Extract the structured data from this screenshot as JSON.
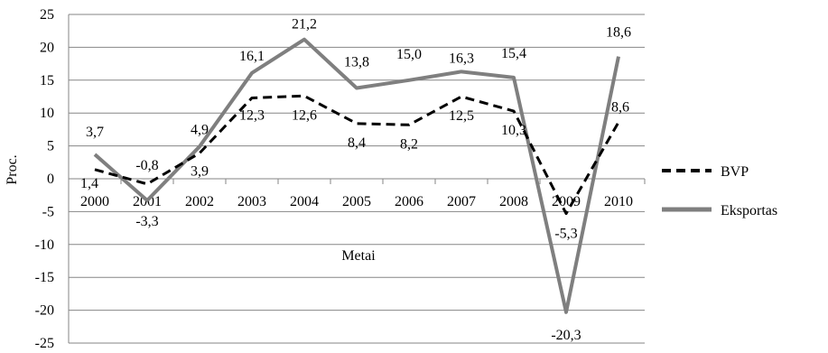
{
  "chart_data": {
    "type": "line",
    "title": "",
    "xlabel": "Metai",
    "ylabel": "Proc.",
    "ylim": [
      -25,
      25
    ],
    "yticks": [
      25,
      20,
      15,
      10,
      5,
      0,
      -5,
      -10,
      -15,
      -20,
      -25
    ],
    "grid": true,
    "legend_position": "right",
    "categories": [
      "2000",
      "2001",
      "2002",
      "2003",
      "2004",
      "2005",
      "2006",
      "2007",
      "2008",
      "2009",
      "2010"
    ],
    "series": [
      {
        "name": "BVP",
        "style": "dashed",
        "color": "#000000",
        "values": [
          1.4,
          -0.8,
          3.9,
          12.3,
          12.6,
          8.4,
          8.2,
          12.5,
          10.3,
          -5.3,
          8.6
        ],
        "labels": [
          "1,4",
          "-0,8",
          "3,9",
          "12,3",
          "12,6",
          "8,4",
          "8,2",
          "12,5",
          "10,3",
          "-5,3",
          "8,6"
        ]
      },
      {
        "name": "Eksportas",
        "style": "solid",
        "color": "#7f7f7f",
        "values": [
          3.7,
          -3.3,
          4.9,
          16.1,
          21.2,
          13.8,
          15.0,
          16.3,
          15.4,
          -20.3,
          18.6
        ],
        "labels": [
          "3,7",
          "-3,3",
          "4,9",
          "16,1",
          "21,2",
          "13,8",
          "15,0",
          "16,3",
          "15,4",
          "-20,3",
          "18,6"
        ]
      }
    ]
  }
}
